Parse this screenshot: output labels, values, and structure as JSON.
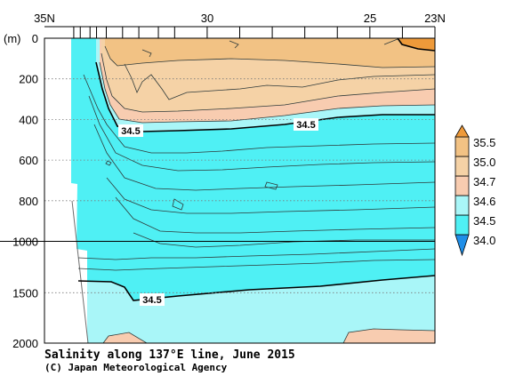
{
  "chart_data": {
    "type": "contour-section",
    "title": "Salinity along 137°E line, June 2015",
    "credit": "(C) Japan Meteorological Agency",
    "x_axis": {
      "reversed": true,
      "range_deg_N": [
        35,
        23
      ],
      "labeled_ticks": [
        {
          "value": 35,
          "label": "35N"
        },
        {
          "value": 30,
          "label": "30"
        },
        {
          "value": 25,
          "label": "25"
        },
        {
          "value": 23,
          "label": "23N"
        }
      ],
      "station_ticks": [
        34.1,
        33.9,
        33.6,
        33.4,
        33.1,
        32.6,
        32.1,
        31.5,
        31.0,
        30.0,
        29.0,
        28.0,
        27.0,
        26.0,
        25.0,
        24.0,
        23.0
      ]
    },
    "y_axis": {
      "unit_label": "(m)",
      "reversed": true,
      "upper_range_m": [
        0,
        1000
      ],
      "lower_range_m": [
        1000,
        2000
      ],
      "upper_ticks": [
        0,
        200,
        400,
        600,
        800,
        1000
      ],
      "lower_ticks": [
        1500,
        2000
      ],
      "grid": "dotted"
    },
    "colorbar": {
      "levels": [
        34.0,
        34.5,
        34.6,
        34.7,
        35.0,
        35.5
      ],
      "labels": [
        "34.0",
        "34.5",
        "34.6",
        "34.7",
        "35.0",
        "35.5"
      ],
      "colors": {
        "below_34.0": "#1e8ee8",
        "34.0-34.5": "#4ff0f4",
        "34.5-34.6": "#a9f6f8",
        "34.6-34.7": "#f8ccb0",
        "34.7-35.0": "#f5d2a6",
        "35.0-35.5": "#f2c284",
        "above_35.5": "#ee9a3a"
      }
    },
    "contour_labels": [
      {
        "text": "34.5",
        "lat": 33.2,
        "depth_m": 430
      },
      {
        "text": "34.5",
        "lat": 27.5,
        "depth_m": 400
      },
      {
        "text": "34.5",
        "lat": 32.2,
        "depth_m": 1530
      }
    ]
  }
}
